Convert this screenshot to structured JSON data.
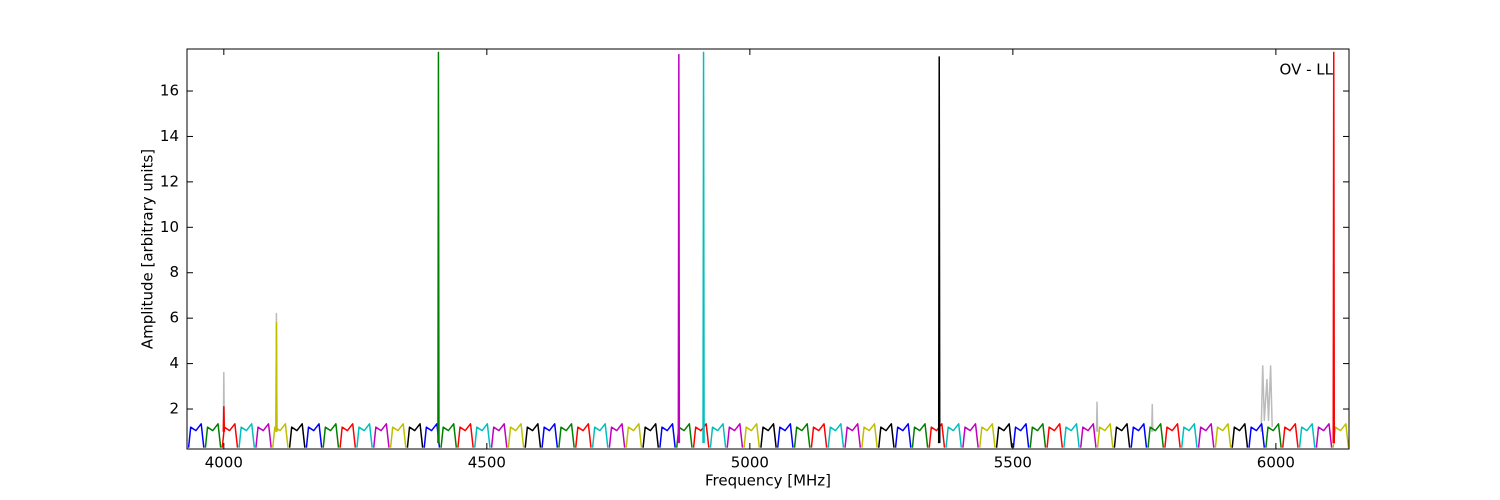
{
  "chart_data": {
    "type": "line",
    "xlabel": "Frequency [MHz]",
    "ylabel": "Amplitude [arbitrary units]",
    "annotation": "OV - LL",
    "xlim": [
      3930,
      6139
    ],
    "ylim": [
      0.24,
      17.85
    ],
    "xticks": [
      4000,
      4500,
      5000,
      5500,
      6000
    ],
    "yticks": [
      2,
      4,
      6,
      8,
      10,
      12,
      14,
      16
    ],
    "series": [
      {
        "color": "#bbbbbb",
        "x": [
          3999,
          4000,
          4001,
          null,
          4099,
          4100,
          4101,
          null,
          5659,
          5660,
          5661,
          null,
          5764,
          5765,
          5766,
          null,
          5972,
          5975,
          5978,
          5983,
          5986,
          5990,
          5993
        ],
        "values": [
          1.0,
          3.6,
          1.0,
          null,
          1.0,
          6.2,
          1.0,
          null,
          1.0,
          2.3,
          1.0,
          null,
          1.0,
          2.2,
          1.0,
          null,
          1.0,
          3.9,
          1.5,
          3.3,
          1.5,
          3.9,
          1.2
        ]
      },
      {
        "color": "#0000ff",
        "x": [
          3933,
          3937,
          3947,
          3957,
          3962,
          null,
          4157,
          4161,
          4171,
          4181,
          4186,
          null,
          4381,
          4385,
          4395,
          4405,
          4410,
          null,
          4605,
          4609,
          4619,
          4629,
          4634,
          null,
          4829,
          4833,
          4843,
          4853,
          4858,
          null,
          5053,
          5057,
          5067,
          5077,
          5082,
          null,
          5277,
          5281,
          5291,
          5301,
          5306,
          null,
          5501,
          5505,
          5515,
          5525,
          5530,
          null,
          5725,
          5729,
          5739,
          5749,
          5754,
          null,
          5949,
          5953,
          5963,
          5973,
          5978
        ],
        "values": [
          0.3,
          1.2,
          1.05,
          1.35,
          0.3,
          null,
          0.3,
          1.2,
          1.05,
          1.35,
          0.3,
          null,
          0.3,
          1.2,
          1.05,
          1.35,
          0.3,
          null,
          0.3,
          1.2,
          1.05,
          1.35,
          0.3,
          null,
          0.3,
          1.2,
          1.05,
          1.35,
          0.3,
          null,
          0.3,
          1.2,
          1.05,
          1.35,
          0.3,
          null,
          0.3,
          1.2,
          1.05,
          1.35,
          0.3,
          null,
          0.3,
          1.2,
          1.05,
          1.35,
          0.3,
          null,
          0.3,
          1.2,
          1.05,
          1.35,
          0.3,
          null,
          0.3,
          1.2,
          1.05,
          1.35,
          0.3
        ]
      },
      {
        "color": "#008000",
        "x": [
          3965,
          3969,
          3979,
          3989,
          3994,
          null,
          4189,
          4193,
          4203,
          4213,
          4218,
          null,
          4413,
          4417,
          4427,
          4437,
          4442,
          null,
          4637,
          4641,
          4651,
          4661,
          4666,
          null,
          4861,
          4865,
          4875,
          4885,
          4890,
          null,
          5085,
          5089,
          5099,
          5109,
          5114,
          null,
          5309,
          5313,
          5323,
          5333,
          5338,
          null,
          5533,
          5537,
          5547,
          5557,
          5562,
          null,
          5757,
          5761,
          5771,
          5781,
          5786,
          null,
          5981,
          5985,
          5995,
          6005,
          6010
        ],
        "values": [
          0.3,
          1.2,
          1.05,
          1.35,
          0.3,
          null,
          0.3,
          1.2,
          1.05,
          1.35,
          0.3,
          null,
          0.3,
          1.2,
          1.05,
          1.35,
          0.3,
          null,
          0.3,
          1.2,
          1.05,
          1.35,
          0.3,
          null,
          0.3,
          1.2,
          1.05,
          1.35,
          0.3,
          null,
          0.3,
          1.2,
          1.05,
          1.35,
          0.3,
          null,
          0.3,
          1.2,
          1.05,
          1.35,
          0.3,
          null,
          0.3,
          1.2,
          1.05,
          1.35,
          0.3,
          null,
          0.3,
          1.2,
          1.05,
          1.35,
          0.3,
          null,
          0.3,
          1.2,
          1.05,
          1.35,
          0.3
        ]
      },
      {
        "color": "#ff0000",
        "x": [
          3997,
          4001,
          4011,
          4021,
          4026,
          null,
          4221,
          4225,
          4235,
          4245,
          4250,
          null,
          4445,
          4449,
          4459,
          4469,
          4474,
          null,
          4669,
          4673,
          4683,
          4693,
          4698,
          null,
          4893,
          4897,
          4907,
          4917,
          4922,
          null,
          5117,
          5121,
          5131,
          5141,
          5146,
          null,
          5341,
          5345,
          5355,
          5365,
          5370,
          null,
          5565,
          5569,
          5579,
          5589,
          5594,
          null,
          5789,
          5793,
          5803,
          5813,
          5818,
          null,
          6013,
          6017,
          6027,
          6037,
          6042
        ],
        "values": [
          0.3,
          1.2,
          1.05,
          1.35,
          0.3,
          null,
          0.3,
          1.2,
          1.05,
          1.35,
          0.3,
          null,
          0.3,
          1.2,
          1.05,
          1.35,
          0.3,
          null,
          0.3,
          1.2,
          1.05,
          1.35,
          0.3,
          null,
          0.3,
          1.2,
          1.05,
          1.35,
          0.3,
          null,
          0.3,
          1.2,
          1.05,
          1.35,
          0.3,
          null,
          0.3,
          1.2,
          1.05,
          1.35,
          0.3,
          null,
          0.3,
          1.2,
          1.05,
          1.35,
          0.3,
          null,
          0.3,
          1.2,
          1.05,
          1.35,
          0.3,
          null,
          0.3,
          1.2,
          1.05,
          1.35,
          0.3
        ]
      },
      {
        "color": "#00bfbf",
        "x": [
          4029,
          4033,
          4043,
          4053,
          4058,
          null,
          4253,
          4257,
          4267,
          4277,
          4282,
          null,
          4477,
          4481,
          4491,
          4501,
          4506,
          null,
          4701,
          4705,
          4715,
          4725,
          4730,
          null,
          4925,
          4929,
          4939,
          4949,
          4954,
          null,
          5149,
          5153,
          5163,
          5173,
          5178,
          null,
          5373,
          5377,
          5387,
          5397,
          5402,
          null,
          5597,
          5601,
          5611,
          5621,
          5626,
          null,
          5821,
          5825,
          5835,
          5845,
          5850,
          null,
          6045,
          6049,
          6059,
          6069,
          6074
        ],
        "values": [
          0.3,
          1.2,
          1.05,
          1.35,
          0.3,
          null,
          0.3,
          1.2,
          1.05,
          1.35,
          0.3,
          null,
          0.3,
          1.2,
          1.05,
          1.35,
          0.3,
          null,
          0.3,
          1.2,
          1.05,
          1.35,
          0.3,
          null,
          0.3,
          1.2,
          1.05,
          1.35,
          0.3,
          null,
          0.3,
          1.2,
          1.05,
          1.35,
          0.3,
          null,
          0.3,
          1.2,
          1.05,
          1.35,
          0.3,
          null,
          0.3,
          1.2,
          1.05,
          1.35,
          0.3,
          null,
          0.3,
          1.2,
          1.05,
          1.35,
          0.3,
          null,
          0.3,
          1.2,
          1.05,
          1.35,
          0.3
        ]
      },
      {
        "color": "#bf00bf",
        "x": [
          4061,
          4065,
          4075,
          4085,
          4090,
          null,
          4285,
          4289,
          4299,
          4309,
          4314,
          null,
          4509,
          4513,
          4523,
          4533,
          4538,
          null,
          4733,
          4737,
          4747,
          4757,
          4762,
          null,
          4957,
          4961,
          4971,
          4981,
          4986,
          null,
          5181,
          5185,
          5195,
          5205,
          5210,
          null,
          5405,
          5409,
          5419,
          5429,
          5434,
          null,
          5629,
          5633,
          5643,
          5653,
          5658,
          null,
          5853,
          5857,
          5867,
          5877,
          5882,
          null,
          6077,
          6081,
          6091,
          6101,
          6106
        ],
        "values": [
          0.3,
          1.2,
          1.05,
          1.35,
          0.3,
          null,
          0.3,
          1.2,
          1.05,
          1.35,
          0.3,
          null,
          0.3,
          1.2,
          1.05,
          1.35,
          0.3,
          null,
          0.3,
          1.2,
          1.05,
          1.35,
          0.3,
          null,
          0.3,
          1.2,
          1.05,
          1.35,
          0.3,
          null,
          0.3,
          1.2,
          1.05,
          1.35,
          0.3,
          null,
          0.3,
          1.2,
          1.05,
          1.35,
          0.3,
          null,
          0.3,
          1.2,
          1.05,
          1.35,
          0.3,
          null,
          0.3,
          1.2,
          1.05,
          1.35,
          0.3,
          null,
          0.3,
          1.2,
          1.05,
          1.35,
          0.3
        ]
      },
      {
        "color": "#bfbf00",
        "x": [
          4093,
          4097,
          4107,
          4117,
          4122,
          null,
          4317,
          4321,
          4331,
          4341,
          4346,
          null,
          4541,
          4545,
          4555,
          4565,
          4570,
          null,
          4765,
          4769,
          4779,
          4789,
          4794,
          null,
          4989,
          4993,
          5003,
          5013,
          5018,
          null,
          5213,
          5217,
          5227,
          5237,
          5242,
          null,
          5437,
          5441,
          5451,
          5461,
          5466,
          null,
          5661,
          5665,
          5675,
          5685,
          5690,
          null,
          5885,
          5889,
          5899,
          5909,
          5914,
          null,
          6109,
          6113,
          6123,
          6133,
          6138
        ],
        "values": [
          0.3,
          1.2,
          1.05,
          1.35,
          0.3,
          null,
          0.3,
          1.2,
          1.05,
          1.35,
          0.3,
          null,
          0.3,
          1.2,
          1.05,
          1.35,
          0.3,
          null,
          0.3,
          1.2,
          1.05,
          1.35,
          0.3,
          null,
          0.3,
          1.2,
          1.05,
          1.35,
          0.3,
          null,
          0.3,
          1.2,
          1.05,
          1.35,
          0.3,
          null,
          0.3,
          1.2,
          1.05,
          1.35,
          0.3,
          null,
          0.3,
          1.2,
          1.05,
          1.35,
          0.3,
          null,
          0.3,
          1.2,
          1.05,
          1.35,
          0.3,
          null,
          0.3,
          1.2,
          1.05,
          1.35,
          0.3
        ]
      },
      {
        "color": "#000000",
        "x": [
          4125,
          4129,
          4139,
          4149,
          4154,
          null,
          4349,
          4353,
          4363,
          4373,
          4378,
          null,
          4573,
          4577,
          4587,
          4597,
          4602,
          null,
          4797,
          4801,
          4811,
          4821,
          4826,
          null,
          5021,
          5025,
          5035,
          5045,
          5050,
          null,
          5245,
          5249,
          5259,
          5269,
          5274,
          null,
          5469,
          5473,
          5483,
          5493,
          5498,
          null,
          5693,
          5697,
          5707,
          5717,
          5722,
          null,
          5917,
          5921,
          5931,
          5941,
          5946
        ],
        "values": [
          0.3,
          1.2,
          1.05,
          1.35,
          0.3,
          null,
          0.3,
          1.2,
          1.05,
          1.35,
          0.3,
          null,
          0.3,
          1.2,
          1.05,
          1.35,
          0.3,
          null,
          0.3,
          1.2,
          1.05,
          1.35,
          0.3,
          null,
          0.3,
          1.2,
          1.05,
          1.35,
          0.3,
          null,
          0.3,
          1.2,
          1.05,
          1.35,
          0.3,
          null,
          0.3,
          1.2,
          1.05,
          1.35,
          0.3,
          null,
          0.3,
          1.2,
          1.05,
          1.35,
          0.3,
          null,
          0.3,
          1.2,
          1.05,
          1.35,
          0.3
        ]
      },
      {
        "color": "#ff0000",
        "x": [
          3999,
          4000,
          4001
        ],
        "values": [
          1.0,
          2.1,
          1.0
        ]
      },
      {
        "color": "#bfbf00",
        "x": [
          4099,
          4100,
          4101
        ],
        "values": [
          1.0,
          5.8,
          1.0
        ]
      },
      {
        "color": "#008000",
        "x": [
          4407,
          4408,
          4409
        ],
        "values": [
          0.5,
          17.7,
          0.5
        ]
      },
      {
        "color": "#bf00bf",
        "x": [
          4864,
          4865,
          4866
        ],
        "values": [
          0.5,
          17.6,
          0.5
        ]
      },
      {
        "color": "#00bfbf",
        "x": [
          4911,
          4912,
          4913
        ],
        "values": [
          0.5,
          17.7,
          0.5
        ]
      },
      {
        "color": "#000000",
        "x": [
          5359,
          5360,
          5361
        ],
        "values": [
          0.5,
          17.5,
          0.5
        ]
      },
      {
        "color": "#ff0000",
        "x": [
          6109,
          6110,
          6111
        ],
        "values": [
          0.5,
          17.7,
          0.5
        ]
      }
    ]
  }
}
